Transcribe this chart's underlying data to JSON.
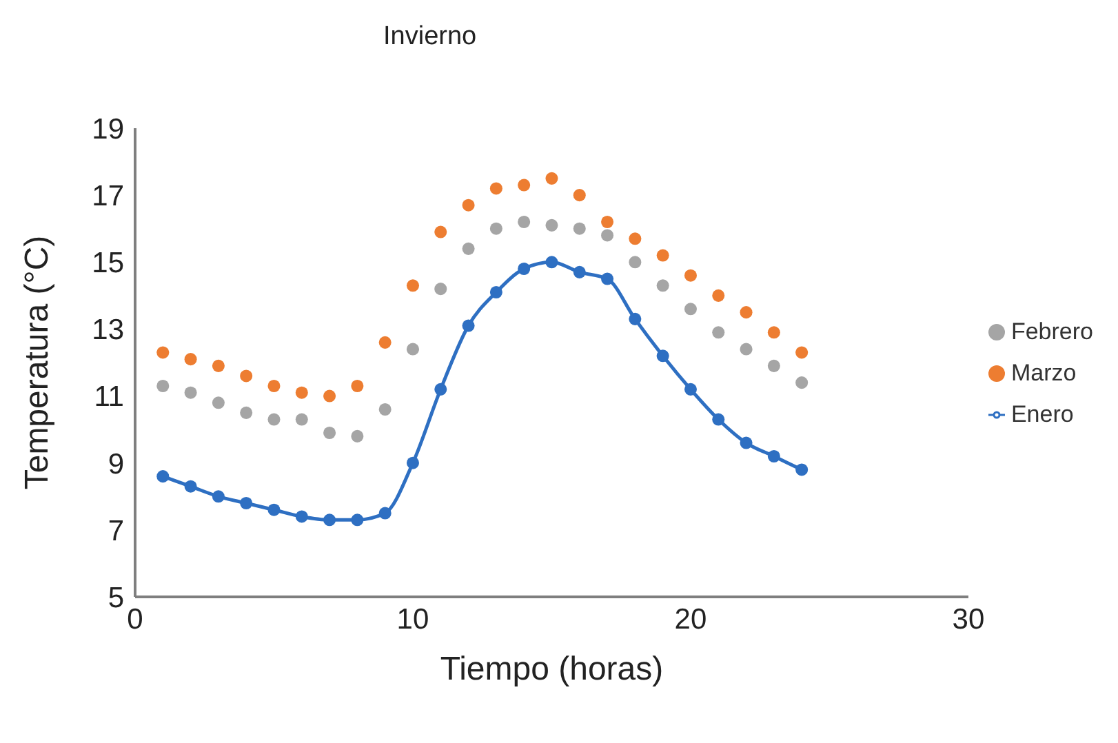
{
  "chart_data": {
    "type": "scatter",
    "title": "Invierno",
    "xlabel": "Tiempo (horas)",
    "ylabel": "Temperatura (°C)",
    "x": [
      1,
      2,
      3,
      4,
      5,
      6,
      7,
      8,
      9,
      10,
      11,
      12,
      13,
      14,
      15,
      16,
      17,
      18,
      19,
      20,
      21,
      22,
      23,
      24
    ],
    "xlim": [
      0,
      30
    ],
    "xticks": [
      0,
      10,
      20,
      30
    ],
    "ylim": [
      5,
      19
    ],
    "yticks": [
      5,
      7,
      9,
      11,
      13,
      15,
      17,
      19
    ],
    "grid": false,
    "legend": "right",
    "marker": "circle",
    "series": [
      {
        "name": "Febrero",
        "color": "#a5a5a5",
        "values": [
          11.3,
          11.1,
          10.8,
          10.5,
          10.3,
          10.3,
          9.9,
          9.8,
          10.6,
          12.4,
          14.2,
          15.4,
          16.0,
          16.2,
          16.1,
          16.0,
          15.8,
          15.0,
          14.3,
          13.6,
          12.9,
          12.4,
          11.9,
          11.4
        ]
      },
      {
        "name": "Marzo",
        "color": "#ed7d31",
        "values": [
          12.3,
          12.1,
          11.9,
          11.6,
          11.3,
          11.1,
          11.0,
          11.3,
          12.6,
          14.3,
          15.9,
          16.7,
          17.2,
          17.3,
          17.5,
          17.0,
          16.2,
          15.7,
          15.2,
          14.6,
          14.0,
          13.5,
          12.9,
          12.3
        ]
      },
      {
        "name": "Enero",
        "type": "line",
        "color": "#2e6fc2",
        "values": [
          8.6,
          8.3,
          8.0,
          7.8,
          7.6,
          7.4,
          7.3,
          7.3,
          7.5,
          9.0,
          11.2,
          13.1,
          14.1,
          14.8,
          15.0,
          14.7,
          14.5,
          13.3,
          12.2,
          11.2,
          10.3,
          9.6,
          9.2,
          8.8
        ]
      }
    ]
  }
}
